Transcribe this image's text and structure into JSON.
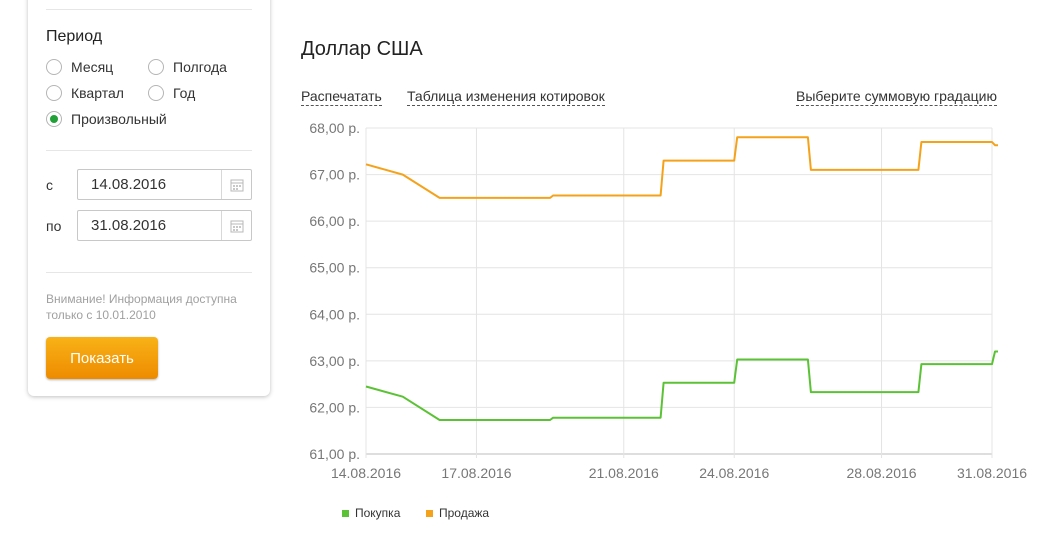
{
  "sidebar": {
    "period_title": "Период",
    "options": [
      {
        "label": "Месяц",
        "selected": false
      },
      {
        "label": "Полгода",
        "selected": false
      },
      {
        "label": "Квартал",
        "selected": false
      },
      {
        "label": "Год",
        "selected": false
      },
      {
        "label": "Произвольный",
        "selected": true
      }
    ],
    "from_label": "с",
    "from_value": "14.08.2016",
    "to_label": "по",
    "to_value": "31.08.2016",
    "note": "Внимание! Информация доступна только с 10.01.2010",
    "show_button": "Показать"
  },
  "main": {
    "title": "Доллар США",
    "print_link": "Распечатать",
    "table_link": "Таблица изменения котировок",
    "gradation_link": "Выберите суммовую градацию"
  },
  "legend": {
    "buy": "Покупка",
    "sell": "Продажа"
  },
  "colors": {
    "buy": "#5bc236",
    "sell": "#f5a21b",
    "accent": "#21a038",
    "button": "#f29b0b"
  },
  "chart_data": {
    "type": "line",
    "title": "",
    "xlabel": "",
    "ylabel": "",
    "ylim": [
      61,
      68
    ],
    "y_ticks": [
      "68,00 р.",
      "67,00 р.",
      "66,00 р.",
      "65,00 р.",
      "64,00 р.",
      "63,00 р.",
      "62,00 р.",
      "61,00 р."
    ],
    "x_ticks": [
      "14.08.2016",
      "17.08.2016",
      "21.08.2016",
      "24.08.2016",
      "28.08.2016",
      "31.08.2016"
    ],
    "xlim": [
      "2016-08-14",
      "2016-08-31"
    ],
    "grid": true,
    "series": [
      {
        "name": "Покупка",
        "color": "#5bc236",
        "points": [
          [
            "2016-08-14",
            62.45
          ],
          [
            "2016-08-15",
            62.23
          ],
          [
            "2016-08-16",
            61.73
          ],
          [
            "2016-08-18",
            61.73
          ],
          [
            "2016-08-19",
            61.73
          ],
          [
            "2016-08-19",
            61.78
          ],
          [
            "2016-08-21",
            61.78
          ],
          [
            "2016-08-22",
            61.78
          ],
          [
            "2016-08-22",
            62.53
          ],
          [
            "2016-08-23",
            62.53
          ],
          [
            "2016-08-24",
            62.53
          ],
          [
            "2016-08-24",
            63.03
          ],
          [
            "2016-08-25",
            63.03
          ],
          [
            "2016-08-26",
            63.03
          ],
          [
            "2016-08-26",
            62.33
          ],
          [
            "2016-08-28",
            62.33
          ],
          [
            "2016-08-29",
            62.33
          ],
          [
            "2016-08-29",
            62.93
          ],
          [
            "2016-08-30",
            62.93
          ],
          [
            "2016-08-31",
            62.93
          ],
          [
            "2016-08-31",
            63.2
          ],
          [
            "2016-08-31",
            63.2
          ]
        ]
      },
      {
        "name": "Продажа",
        "color": "#f5a21b",
        "points": [
          [
            "2016-08-14",
            67.22
          ],
          [
            "2016-08-15",
            67.0
          ],
          [
            "2016-08-16",
            66.5
          ],
          [
            "2016-08-18",
            66.5
          ],
          [
            "2016-08-19",
            66.5
          ],
          [
            "2016-08-19",
            66.55
          ],
          [
            "2016-08-21",
            66.55
          ],
          [
            "2016-08-22",
            66.55
          ],
          [
            "2016-08-22",
            67.3
          ],
          [
            "2016-08-23",
            67.3
          ],
          [
            "2016-08-24",
            67.3
          ],
          [
            "2016-08-24",
            67.8
          ],
          [
            "2016-08-25",
            67.8
          ],
          [
            "2016-08-26",
            67.8
          ],
          [
            "2016-08-26",
            67.1
          ],
          [
            "2016-08-28",
            67.1
          ],
          [
            "2016-08-29",
            67.1
          ],
          [
            "2016-08-29",
            67.7
          ],
          [
            "2016-08-30",
            67.7
          ],
          [
            "2016-08-31",
            67.7
          ],
          [
            "2016-08-31",
            67.63
          ],
          [
            "2016-08-31",
            67.63
          ]
        ]
      }
    ]
  }
}
